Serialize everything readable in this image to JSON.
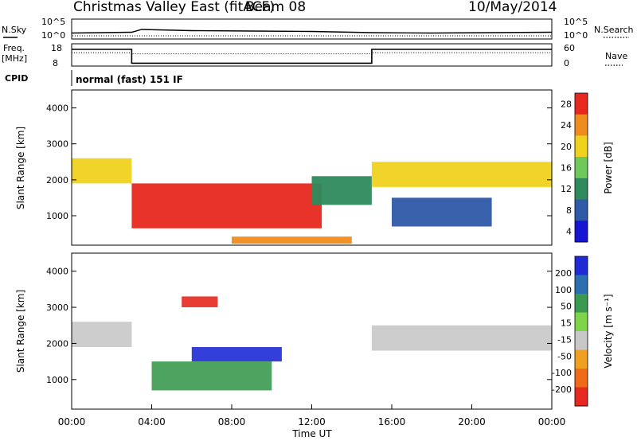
{
  "header": {
    "title": "Christmas Valley East (fitACF)",
    "beam": "Beam 08",
    "date": "10/May/2014"
  },
  "chart_data": [
    {
      "type": "line",
      "panel": "noise",
      "left_label": "N.Sky",
      "right_label": "N.Search",
      "left_ticks": [
        "10^5",
        "10^0"
      ],
      "right_ticks": [
        "10^5",
        "10^0"
      ],
      "legend_style": "dotted",
      "x": [
        "00:00",
        "03:00",
        "03:30",
        "06:00",
        "09:00",
        "12:00",
        "15:00",
        "18:00",
        "21:00",
        "24:00"
      ],
      "series": [
        {
          "values": [
            1.5,
            1.7,
            2.4,
            2.1,
            2.0,
            1.9,
            1.6,
            1.5,
            1.6,
            1.7
          ]
        }
      ]
    },
    {
      "type": "line",
      "panel": "frequency",
      "left_label": "Freq.",
      "left_unit": "[MHz]",
      "left_ticks": [
        "18",
        "8"
      ],
      "right_label": "Nave",
      "right_ticks": [
        "60",
        "0"
      ],
      "legend_style": "dotted",
      "x": [
        "00:00",
        "03:00",
        "03:00",
        "15:00",
        "15:00",
        "24:00"
      ],
      "series": [
        {
          "values": [
            15.5,
            15.5,
            9.3,
            9.3,
            15.5,
            15.5
          ]
        },
        {
          "style": "dotted",
          "values": [
            36,
            36,
            33,
            33,
            36,
            36
          ]
        }
      ]
    },
    {
      "type": "table",
      "panel": "cpid",
      "label": "CPID",
      "text": "normal (fast) 151 IF"
    },
    {
      "type": "heatmap",
      "panel": "power",
      "xlabel": "",
      "ylabel": "Slant Range [km]",
      "yticks": [
        "1000",
        "2000",
        "3000",
        "4000"
      ],
      "ylim": [
        180,
        4500
      ],
      "xlim": [
        "00:00",
        "24:00"
      ],
      "colorbar_label": "Power [dB]",
      "colorbar_ticks": [
        "4",
        "8",
        "12",
        "16",
        "20",
        "24",
        "28"
      ],
      "colorbar_colors": [
        "#1414d2",
        "#2f5aa8",
        "#2e8a5c",
        "#6ec85a",
        "#f0d21e",
        "#f08c1e",
        "#e6281e"
      ],
      "features": [
        {
          "x": [
            0,
            3
          ],
          "range": [
            1900,
            2600
          ],
          "level": 20
        },
        {
          "x": [
            3,
            12.5
          ],
          "range": [
            650,
            1900
          ],
          "level": 28
        },
        {
          "x": [
            12,
            15
          ],
          "range": [
            1300,
            2100
          ],
          "level": 12
        },
        {
          "x": [
            15,
            24
          ],
          "range": [
            1800,
            2500
          ],
          "level": 20
        },
        {
          "x": [
            16,
            21
          ],
          "range": [
            700,
            1500
          ],
          "level": 8
        },
        {
          "x": [
            8,
            14
          ],
          "range": [
            220,
            420
          ],
          "level": 24
        }
      ]
    },
    {
      "type": "heatmap",
      "panel": "velocity",
      "xlabel": "Time UT",
      "ylabel": "Slant Range [km]",
      "xticks": [
        "00:00",
        "04:00",
        "08:00",
        "12:00",
        "16:00",
        "20:00",
        "00:00"
      ],
      "yticks": [
        "1000",
        "2000",
        "3000",
        "4000"
      ],
      "ylim": [
        180,
        4500
      ],
      "xlim": [
        "00:00",
        "24:00"
      ],
      "colorbar_label": "Velocity [m s⁻¹]",
      "colorbar_ticks": [
        "200",
        "100",
        "50",
        "15",
        "-15",
        "-50",
        "-100",
        "-200"
      ],
      "colorbar_colors": [
        "#1e2ad6",
        "#2a6fb0",
        "#3a9a50",
        "#7ed44a",
        "#c8c8c8",
        "#f0a020",
        "#f06a1a",
        "#e6281e"
      ],
      "features": [
        {
          "x": [
            0,
            3
          ],
          "range": [
            1900,
            2600
          ],
          "velocity": 0
        },
        {
          "x": [
            6,
            10.5
          ],
          "range": [
            1500,
            1900
          ],
          "velocity": 200
        },
        {
          "x": [
            4,
            10
          ],
          "range": [
            700,
            1500
          ],
          "velocity": 50
        },
        {
          "x": [
            15,
            24
          ],
          "range": [
            1800,
            2500
          ],
          "velocity": 0
        },
        {
          "x": [
            5.5,
            7.3
          ],
          "range": [
            3000,
            3300
          ],
          "velocity": -200
        }
      ]
    }
  ]
}
